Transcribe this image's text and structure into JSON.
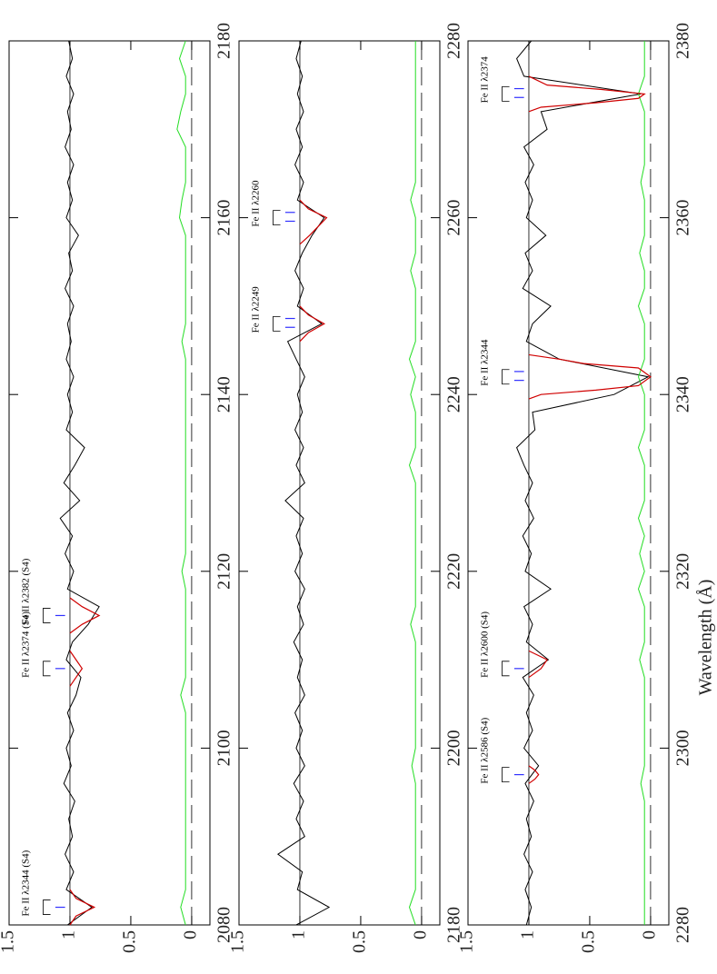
{
  "chart_data": [
    {
      "type": "line",
      "xlim": [
        2080,
        2180
      ],
      "xticks": [
        2080,
        2100,
        2120,
        2140,
        2160,
        2180
      ],
      "ylim": [
        -0.15,
        1.5
      ],
      "yticks": [
        0,
        0.5,
        1,
        {
          "value": 1.5,
          "label": "1.5"
        }
      ],
      "reference_lines": [
        0,
        1
      ],
      "x": [
        2080,
        2082,
        2084,
        2086,
        2088,
        2090,
        2092,
        2094,
        2096,
        2098,
        2100,
        2102,
        2104,
        2106,
        2108,
        2110,
        2112,
        2114,
        2116,
        2118,
        2120,
        2122,
        2124,
        2126,
        2128,
        2130,
        2132,
        2134,
        2136,
        2138,
        2140,
        2142,
        2144,
        2146,
        2148,
        2150,
        2152,
        2154,
        2156,
        2158,
        2160,
        2162,
        2164,
        2166,
        2168,
        2170,
        2172,
        2174,
        2176,
        2178,
        2180
      ],
      "series": [
        {
          "color": "#000000",
          "values": [
            1.02,
            0.82,
            1.03,
            0.97,
            1.04,
            0.98,
            1.01,
            0.96,
            1.05,
            0.99,
            1.03,
            0.97,
            1.02,
            0.95,
            0.91,
            1.03,
            0.98,
            0.85,
            0.76,
            1.02,
            0.97,
            1.04,
            0.98,
            1.08,
            0.92,
            1.05,
            0.96,
            0.88,
            1.03,
            0.98,
            1.02,
            0.97,
            1.03,
            0.99,
            1.02,
            0.97,
            1.04,
            0.98,
            1.01,
            0.93,
            1.03,
            0.98,
            1.02,
            0.97,
            1.04,
            0.99,
            1.02,
            0.97,
            1.03,
            0.98,
            1.01
          ]
        },
        {
          "color": "#22dd22",
          "values": [
            0.05,
            0.09,
            0.05,
            0.05,
            0.05,
            0.05,
            0.05,
            0.05,
            0.05,
            0.05,
            0.05,
            0.05,
            0.05,
            0.09,
            0.05,
            0.05,
            0.05,
            0.05,
            0.05,
            0.05,
            0.08,
            0.05,
            0.05,
            0.05,
            0.05,
            0.05,
            0.05,
            0.05,
            0.05,
            0.05,
            0.05,
            0.05,
            0.05,
            0.08,
            0.05,
            0.05,
            0.05,
            0.05,
            0.05,
            0.05,
            0.1,
            0.08,
            0.05,
            0.05,
            0.05,
            0.12,
            0.09,
            0.05,
            0.05,
            0.1,
            0.05
          ]
        }
      ],
      "fit_color": "#d00000",
      "fits": [
        {
          "x": [
            2080,
            2081,
            2082,
            2083,
            2084
          ],
          "values": [
            1,
            0.95,
            0.8,
            0.95,
            1
          ]
        },
        {
          "x": [
            2107,
            2108,
            2109,
            2110,
            2111
          ],
          "values": [
            1,
            0.95,
            0.9,
            0.95,
            1
          ]
        },
        {
          "x": [
            2113,
            2114,
            2115,
            2116,
            2117
          ],
          "values": [
            1,
            0.9,
            0.76,
            0.9,
            1
          ]
        }
      ],
      "annotation_color": "#3030ff",
      "annotations": [
        {
          "text": "Fe II λ2344 (S4)",
          "wavelength": 2082,
          "components": [
            2082
          ]
        },
        {
          "text": "Fe II λ2374 (S4)",
          "wavelength": 2109,
          "components": [
            2109
          ]
        },
        {
          "text": "Fe II λ2382 (S4)",
          "wavelength": 2115,
          "components": [
            2115
          ]
        }
      ]
    },
    {
      "type": "line",
      "xlim": [
        2180,
        2280
      ],
      "xticks": [
        2180,
        2200,
        2220,
        2240,
        2260,
        2280
      ],
      "ylim": [
        -0.15,
        1.5
      ],
      "yticks": [
        0,
        0.5,
        1,
        {
          "value": 1.5,
          "label": "1.5"
        }
      ],
      "reference_lines": [
        0,
        1
      ],
      "x": [
        2180,
        2182,
        2184,
        2186,
        2188,
        2190,
        2192,
        2194,
        2196,
        2198,
        2200,
        2202,
        2204,
        2206,
        2208,
        2210,
        2212,
        2214,
        2216,
        2218,
        2220,
        2222,
        2224,
        2226,
        2228,
        2230,
        2232,
        2234,
        2236,
        2238,
        2240,
        2242,
        2244,
        2246,
        2248,
        2250,
        2252,
        2254,
        2256,
        2258,
        2260,
        2262,
        2264,
        2266,
        2268,
        2270,
        2272,
        2274,
        2276,
        2278,
        2280
      ],
      "series": [
        {
          "color": "#000000",
          "values": [
            1.03,
            0.76,
            1.02,
            0.98,
            1.18,
            0.96,
            1.03,
            0.97,
            1.05,
            0.96,
            1.03,
            0.98,
            1.04,
            0.96,
            1.02,
            0.98,
            1.05,
            0.97,
            1.02,
            0.96,
            1.04,
            0.98,
            1.03,
            0.97,
            1.12,
            0.96,
            1.03,
            0.97,
            1.04,
            0.98,
            1.02,
            0.96,
            1.03,
            1.1,
            0.82,
            1.02,
            0.97,
            1.04,
            0.98,
            0.9,
            0.8,
            1.02,
            0.97,
            1.04,
            0.98,
            1.03,
            0.97,
            1.02,
            0.98,
            1.03,
            0.99
          ]
        },
        {
          "color": "#22dd22",
          "values": [
            0.05,
            0.1,
            0.05,
            0.05,
            0.05,
            0.05,
            0.05,
            0.05,
            0.05,
            0.08,
            0.05,
            0.05,
            0.05,
            0.05,
            0.05,
            0.05,
            0.05,
            0.09,
            0.05,
            0.05,
            0.05,
            0.05,
            0.05,
            0.05,
            0.05,
            0.05,
            0.1,
            0.05,
            0.05,
            0.05,
            0.09,
            0.05,
            0.1,
            0.05,
            0.05,
            0.05,
            0.05,
            0.09,
            0.05,
            0.05,
            0.05,
            0.09,
            0.05,
            0.05,
            0.05,
            0.05,
            0.05,
            0.05,
            0.05,
            0.05,
            0.05
          ]
        }
      ],
      "fit_color": "#d00000",
      "fits": [
        {
          "x": [
            2246,
            2247,
            2248,
            2249,
            2250
          ],
          "values": [
            1,
            0.93,
            0.8,
            0.93,
            1
          ]
        },
        {
          "x": [
            2257,
            2258,
            2259,
            2260,
            2261,
            2262
          ],
          "values": [
            1,
            0.92,
            0.85,
            0.78,
            0.93,
            1
          ]
        }
      ],
      "annotation_color": "#3030ff",
      "annotations": [
        {
          "text": "Fe II λ2249",
          "wavelength": 2248,
          "components": [
            2247.6,
            2248.6
          ]
        },
        {
          "text": "Fe II λ2260",
          "wavelength": 2260,
          "components": [
            2259.6,
            2260.6
          ]
        }
      ]
    },
    {
      "type": "line",
      "xlim": [
        2280,
        2380
      ],
      "xticks": [
        2280,
        2300,
        2320,
        2340,
        2360,
        2380
      ],
      "ylim": [
        -0.15,
        1.5
      ],
      "yticks": [
        0,
        0.5,
        1,
        {
          "value": 1.5,
          "label": "1.5"
        }
      ],
      "reference_lines": [
        0,
        1
      ],
      "xlabel": "Wavelength (Å)",
      "x": [
        2280,
        2282,
        2284,
        2286,
        2288,
        2290,
        2292,
        2294,
        2296,
        2298,
        2300,
        2302,
        2304,
        2306,
        2308,
        2310,
        2312,
        2314,
        2316,
        2318,
        2320,
        2322,
        2324,
        2326,
        2328,
        2330,
        2332,
        2334,
        2336,
        2338,
        2340,
        2342,
        2344,
        2346,
        2348,
        2350,
        2352,
        2354,
        2356,
        2358,
        2360,
        2362,
        2364,
        2366,
        2368,
        2370,
        2372,
        2374,
        2376,
        2378,
        2380
      ],
      "series": [
        {
          "color": "#000000",
          "values": [
            1.02,
            0.98,
            1.03,
            0.97,
            1.04,
            0.98,
            1.02,
            0.96,
            1.03,
            0.92,
            1.04,
            0.97,
            1.02,
            0.96,
            1.05,
            0.84,
            1.02,
            0.97,
            1.04,
            0.82,
            1.03,
            0.98,
            1.05,
            0.96,
            1.03,
            0.97,
            1.04,
            1.1,
            0.95,
            0.97,
            0.3,
            0.02,
            0.75,
            1.02,
            0.97,
            0.82,
            1.05,
            0.97,
            1.03,
            0.86,
            1.02,
            0.97,
            1.03,
            0.96,
            1.04,
            0.85,
            0.9,
            0.08,
            1.04,
            1.1,
            0.98
          ]
        },
        {
          "color": "#22dd22",
          "values": [
            0.05,
            0.05,
            0.05,
            0.05,
            0.05,
            0.05,
            0.05,
            0.05,
            0.08,
            0.05,
            0.05,
            0.05,
            0.05,
            0.05,
            0.05,
            0.09,
            0.05,
            0.05,
            0.05,
            0.1,
            0.05,
            0.09,
            0.05,
            0.1,
            0.05,
            0.05,
            0.05,
            0.1,
            0.05,
            0.05,
            0.05,
            0.1,
            0.05,
            0.05,
            0.05,
            0.1,
            0.05,
            0.05,
            0.09,
            0.05,
            0.05,
            0.05,
            0.08,
            0.05,
            0.05,
            0.05,
            0.05,
            0.1,
            0.05,
            0.05,
            0.05
          ]
        }
      ],
      "fit_color": "#d00000",
      "fits": [
        {
          "x": [
            2296,
            2296.5,
            2297,
            2297.5,
            2298
          ],
          "values": [
            1,
            0.95,
            0.92,
            0.95,
            1
          ]
        },
        {
          "x": [
            2308,
            2309,
            2310,
            2311
          ],
          "values": [
            1,
            0.9,
            0.85,
            1
          ]
        },
        {
          "x": [
            2339.5,
            2340,
            2340.5,
            2341,
            2342,
            2343,
            2343.5,
            2344,
            2344.5
          ],
          "values": [
            1,
            0.9,
            0.45,
            0.1,
            0,
            0.1,
            0.55,
            0.75,
            1
          ]
        },
        {
          "x": [
            2372,
            2372.5,
            2373,
            2373.5,
            2374,
            2374.5,
            2375,
            2376
          ],
          "values": [
            1,
            0.9,
            0.45,
            0.1,
            0.05,
            0.4,
            0.85,
            1
          ]
        }
      ],
      "annotation_color": "#3030ff",
      "annotations": [
        {
          "text": "Fe II λ2586 (S4)",
          "wavelength": 2297,
          "components": [
            2297
          ]
        },
        {
          "text": "Fe II λ2600 (S4)",
          "wavelength": 2309,
          "components": [
            2309
          ]
        },
        {
          "text": "Fe II λ2344",
          "wavelength": 2342,
          "components": [
            2341.6,
            2342.6
          ]
        },
        {
          "text": "Fe II λ2374",
          "wavelength": 2374,
          "components": [
            2373.6,
            2374.6
          ]
        }
      ]
    }
  ]
}
